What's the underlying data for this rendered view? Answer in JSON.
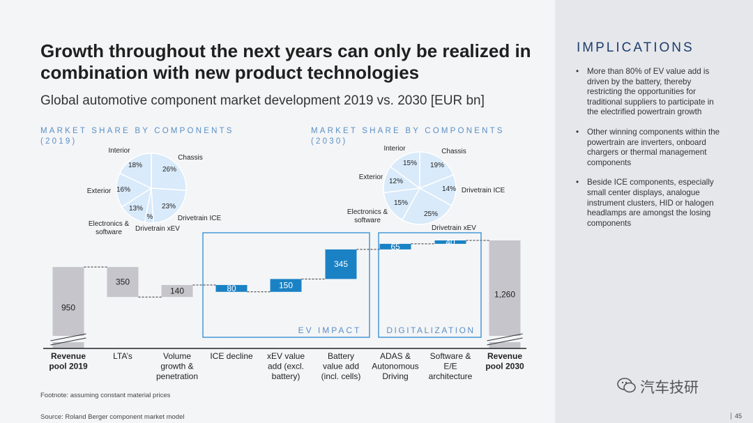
{
  "title": "Growth throughout the next years can only be realized in combination with new product technologies",
  "subtitle": "Global automotive component market development 2019 vs. 2030 [EUR bn]",
  "pie_2019_label": "MARKET SHARE BY COMPONENTS (2019)",
  "pie_2030_label": "MARKET SHARE BY COMPONENTS (2030)",
  "group_labels": {
    "ev_impact": "EV IMPACT",
    "digitalization": "DIGITALIZATION"
  },
  "implications": {
    "title": "IMPLICATIONS",
    "bullets": [
      "More than 80% of EV value add is driven by the battery, thereby restricting the opportunities for traditional suppliers to participate in the electrified powertrain growth",
      "Other winning components within the powertrain are inverters, onboard chargers or thermal management components",
      "Beside ICE components, especially small center displays, analogue instrument clusters, HID or halogen headlamps are amongst the losing components"
    ]
  },
  "footnote": "Footnote: assuming constant material prices",
  "source": "Source: Roland Berger component market model",
  "page_number": "45",
  "watermark": "汽车技研",
  "colors": {
    "blue": "#1a82c4",
    "gray": "#c6c5cc",
    "box": "#2b8ad0",
    "pie": "#d9eafa",
    "pie_stroke": "#ffffff",
    "accent_label": "#5a8fc5"
  },
  "chart_data": [
    {
      "type": "bar",
      "subtype": "waterfall",
      "unit": "EUR bn",
      "categories": [
        "Revenue pool 2019",
        "LTA's",
        "Volume growth & penetration",
        "ICE decline",
        "xEV value add (excl. battery)",
        "Battery value add (incl. cells)",
        "ADAS & Autonomous Driving",
        "Software & E/E architecture",
        "Revenue pool 2030"
      ],
      "category_labels": [
        [
          "Revenue",
          "pool 2019"
        ],
        [
          "LTA’s"
        ],
        [
          "Volume",
          "growth &",
          "penetration"
        ],
        [
          "ICE decline"
        ],
        [
          "xEV value",
          "add (excl.",
          "battery)"
        ],
        [
          "Battery",
          "value add",
          "(incl. cells)"
        ],
        [
          "ADAS &",
          "Autonomous",
          "Driving"
        ],
        [
          "Software &",
          "E/E",
          "architecture"
        ],
        [
          "Revenue",
          "pool 2030"
        ]
      ],
      "bold_categories": [
        0,
        8
      ],
      "values": [
        950,
        -350,
        140,
        -80,
        150,
        345,
        65,
        40,
        1260
      ],
      "value_labels": [
        "950",
        "350",
        "140",
        "80",
        "150",
        "345",
        "65",
        "40",
        "1,260"
      ],
      "kinds": [
        "total",
        "decrease",
        "increase",
        "decrease",
        "increase",
        "increase",
        "increase",
        "increase",
        "total"
      ],
      "bar_colors": [
        "gray",
        "gray",
        "gray",
        "blue",
        "blue",
        "blue",
        "blue",
        "blue",
        "gray"
      ],
      "axis_break_on_totals": true
    },
    {
      "type": "pie",
      "year": "2019",
      "slices": [
        {
          "label": "Chassis",
          "value": 26
        },
        {
          "label": "Drivetrain ICE",
          "value": 23
        },
        {
          "label": "Drivetrain xEV",
          "value": 4
        },
        {
          "label": "Electronics & software",
          "value": 13
        },
        {
          "label": "Exterior",
          "value": 16
        },
        {
          "label": "Interior",
          "value": 18
        }
      ]
    },
    {
      "type": "pie",
      "year": "2030",
      "slices": [
        {
          "label": "Chassis",
          "value": 19
        },
        {
          "label": "Drivetrain ICE",
          "value": 14
        },
        {
          "label": "Drivetrain xEV",
          "value": 25
        },
        {
          "label": "Electronics & software",
          "value": 15
        },
        {
          "label": "Exterior",
          "value": 12
        },
        {
          "label": "Interior",
          "value": 15
        }
      ]
    }
  ]
}
